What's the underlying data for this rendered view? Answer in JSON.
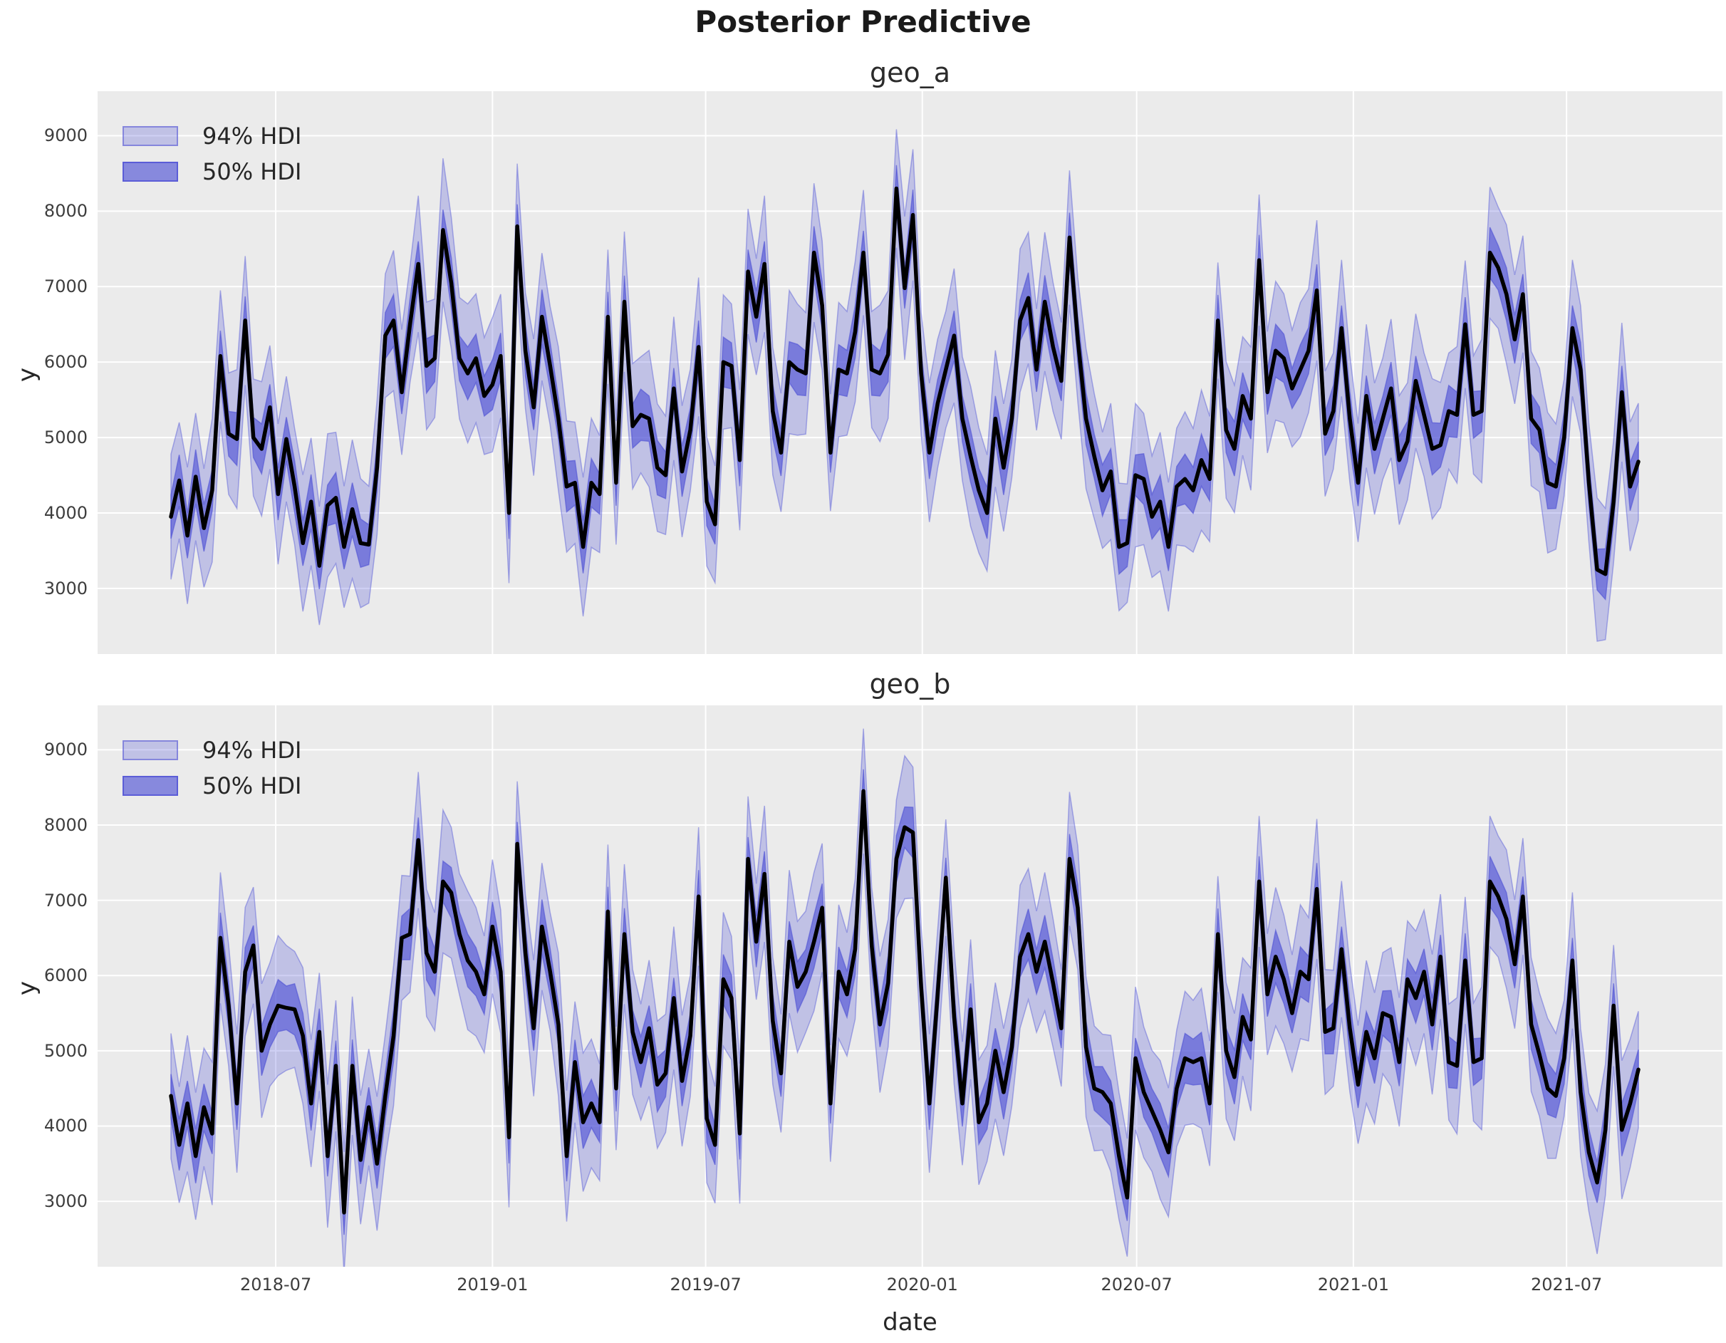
{
  "page": {
    "background": "#ffffff"
  },
  "chart_data": {
    "type": "line",
    "title": "Posterior Predictive",
    "xlabel": "date",
    "ylabel": "y",
    "x_start_date": "2018-04-03",
    "x_step_days": 7,
    "xlim_weeks": [
      -8.9,
      188.2
    ],
    "ylim": [
      2130,
      9590
    ],
    "yticks": [
      3000,
      4000,
      5000,
      6000,
      7000,
      8000,
      9000
    ],
    "xticks": [
      {
        "label": "2018-07",
        "week": 12.71
      },
      {
        "label": "2019-01",
        "week": 39.0
      },
      {
        "label": "2019-07",
        "week": 64.86
      },
      {
        "label": "2020-01",
        "week": 91.14
      },
      {
        "label": "2020-07",
        "week": 117.14
      },
      {
        "label": "2021-01",
        "week": 143.43
      },
      {
        "label": "2021-07",
        "week": 169.29
      }
    ],
    "legend": [
      {
        "label": "94% HDI",
        "alpha": 0.28
      },
      {
        "label": "50% HDI",
        "alpha": 0.66
      }
    ],
    "colors": {
      "band": "#5356d6",
      "hdi94_alpha": 0.28,
      "hdi50_alpha": 0.66,
      "mean_line": "#000000",
      "axes_bg": "#ebebeb",
      "grid": "#ffffff",
      "tick_text": "#3d3d3d",
      "title_text": "#1a1a1a"
    },
    "hdi94_halfwidth_cycle": [
      830,
      770,
      905,
      845,
      785,
      950,
      870,
      805,
      920,
      855,
      775,
      890,
      820,
      930
    ],
    "hdi50_halfwidth_cycle": [
      290,
      340,
      300,
      360,
      310,
      270,
      335,
      295,
      350,
      320,
      265,
      330,
      305,
      345
    ],
    "subplots": [
      {
        "name": "geo_a",
        "y": [
          3950,
          4430,
          3700,
          4480,
          3800,
          4300,
          6080,
          5050,
          4980,
          6550,
          5000,
          4850,
          5400,
          4250,
          4980,
          4350,
          3600,
          4150,
          3300,
          4100,
          4200,
          3550,
          4050,
          3600,
          3580,
          4600,
          6350,
          6550,
          5600,
          6500,
          7300,
          5950,
          6050,
          7750,
          7050,
          6050,
          5850,
          6050,
          5550,
          5700,
          6080,
          4000,
          7800,
          6150,
          5400,
          6600,
          5950,
          5250,
          4350,
          4400,
          3550,
          4400,
          4250,
          6600,
          4400,
          6800,
          5150,
          5300,
          5250,
          4600,
          4500,
          5650,
          4550,
          5100,
          6200,
          4150,
          3850,
          6000,
          5950,
          4700,
          7200,
          6600,
          7300,
          5350,
          4800,
          6000,
          5900,
          5850,
          7450,
          6750,
          4800,
          5900,
          5850,
          6400,
          7450,
          5900,
          5850,
          6100,
          8300,
          6980,
          7950,
          5850,
          4800,
          5450,
          5900,
          6350,
          5250,
          4750,
          4300,
          4000,
          5250,
          4600,
          5250,
          6550,
          6850,
          5900,
          6800,
          6200,
          5750,
          7650,
          6300,
          5250,
          4750,
          4300,
          4550,
          3550,
          3600,
          4500,
          4450,
          3950,
          4150,
          3550,
          4350,
          4450,
          4300,
          4700,
          4450,
          6550,
          5100,
          4850,
          5550,
          5250,
          7350,
          5600,
          6150,
          6050,
          5650,
          5900,
          6150,
          6950,
          5050,
          5350,
          6450,
          5250,
          4400,
          5550,
          4850,
          5250,
          5650,
          4700,
          4950,
          5750,
          5300,
          4850,
          4900,
          5350,
          5300,
          6500,
          5300,
          5350,
          7450,
          7250,
          6900,
          6300,
          6900,
          5250,
          5100,
          4400,
          4350,
          5000,
          6450,
          5900,
          4400,
          3250,
          3190,
          4150,
          5600,
          4350,
          4680
        ]
      },
      {
        "name": "geo_b",
        "y": [
          4400,
          3750,
          4300,
          3600,
          4250,
          3900,
          6500,
          5600,
          4300,
          6050,
          6400,
          5000,
          5350,
          5600,
          5570,
          5550,
          5200,
          4300,
          5250,
          3600,
          4800,
          2850,
          4800,
          3550,
          4250,
          3500,
          4400,
          5200,
          6500,
          6550,
          7800,
          6300,
          6050,
          7250,
          7100,
          6550,
          6200,
          6050,
          5750,
          6650,
          6050,
          3850,
          7750,
          6300,
          5300,
          6650,
          6050,
          5350,
          3600,
          4850,
          4050,
          4300,
          4050,
          6850,
          4500,
          6550,
          5250,
          4850,
          5300,
          4550,
          4700,
          5700,
          4600,
          5200,
          7050,
          4100,
          3750,
          5950,
          5700,
          3900,
          7550,
          6450,
          7350,
          5400,
          4700,
          6450,
          5850,
          6050,
          6450,
          6900,
          4300,
          6050,
          5750,
          6350,
          8450,
          6400,
          5350,
          5900,
          7550,
          7970,
          7900,
          5850,
          4300,
          5750,
          7300,
          5450,
          4300,
          5550,
          4050,
          4300,
          5000,
          4450,
          5050,
          6250,
          6550,
          6050,
          6450,
          5900,
          5300,
          7550,
          6900,
          5050,
          4500,
          4450,
          4300,
          3600,
          3050,
          4900,
          4450,
          4200,
          3950,
          3650,
          4500,
          4900,
          4850,
          4900,
          4300,
          6550,
          5000,
          4650,
          5450,
          5150,
          7250,
          5750,
          6250,
          5950,
          5500,
          6050,
          5950,
          7150,
          5250,
          5300,
          6350,
          5300,
          4550,
          5250,
          4900,
          5500,
          5450,
          4850,
          5950,
          5700,
          6050,
          5350,
          6250,
          4850,
          4800,
          6200,
          4850,
          4900,
          7250,
          7050,
          6750,
          6150,
          7050,
          5350,
          4950,
          4500,
          4400,
          4900,
          6200,
          4450,
          3650,
          3250,
          3950,
          5600,
          3950,
          4300,
          4750
        ]
      }
    ]
  }
}
